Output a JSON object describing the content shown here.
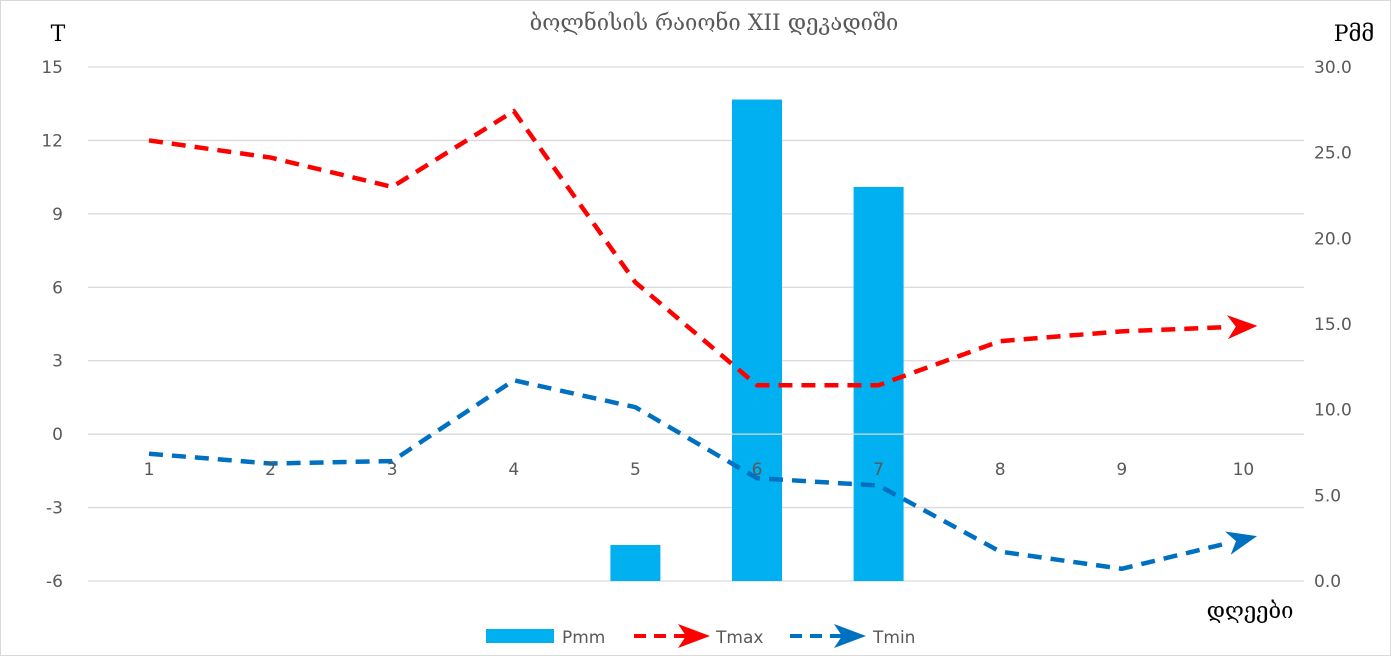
{
  "chart_data": {
    "type": "bar+line",
    "title": "ბოლნისის რაიონი XII დეკადიში",
    "xlabel": "დღეები",
    "ylabel_left": "T",
    "ylabel_right": "Pმმ",
    "categories": [
      "1",
      "2",
      "3",
      "4",
      "5",
      "6",
      "7",
      "8",
      "9",
      "10"
    ],
    "ylim_left": [
      -6,
      15
    ],
    "yticks_left": [
      "15",
      "12",
      "9",
      "6",
      "3",
      "0",
      "-3",
      "-6"
    ],
    "ylim_right": [
      0,
      30
    ],
    "yticks_right": [
      "30.0",
      "25.0",
      "20.0",
      "15.0",
      "10.0",
      "5.0",
      "0.0"
    ],
    "grid": true,
    "legend_position": "bottom",
    "series": [
      {
        "name": "Pmm",
        "type": "bar",
        "axis": "right",
        "color": "#00b0f0",
        "values": [
          0,
          0,
          0,
          0,
          2.1,
          28.1,
          23.0,
          0,
          0,
          0
        ]
      },
      {
        "name": "Tmax",
        "type": "line",
        "axis": "left",
        "color": "#ff0000",
        "dashed": true,
        "values": [
          12.0,
          11.3,
          10.1,
          13.2,
          6.2,
          2.0,
          2.0,
          3.8,
          4.2,
          4.4
        ]
      },
      {
        "name": "Tmin",
        "type": "line",
        "axis": "left",
        "color": "#0070c0",
        "dashed": true,
        "values": [
          -0.8,
          -1.2,
          -1.1,
          2.2,
          1.1,
          -1.8,
          -2.1,
          -4.8,
          -5.5,
          -4.3
        ]
      }
    ]
  }
}
